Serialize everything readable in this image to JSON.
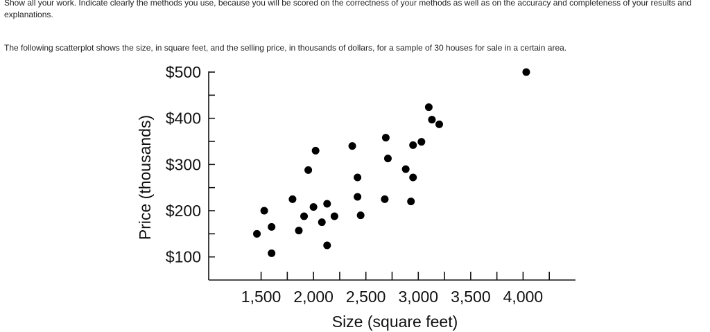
{
  "intro_text": "Show all your work. Indicate clearly the methods you use, because you will be scored on the correctness of your methods as well as on the accuracy and completeness of your results and explanations.",
  "question_text": "The following scatterplot shows the size, in square feet, and the selling price, in thousands of dollars, for a sample of 30 houses for sale in a certain area.",
  "chart_data": {
    "type": "scatter",
    "title": "",
    "xlabel": "Size (square feet)",
    "ylabel": "Price (thousands)",
    "xlim": [
      1000,
      4500
    ],
    "ylim": [
      50,
      500
    ],
    "x_major_ticks": [
      1500,
      2000,
      2500,
      3000,
      3500,
      4000
    ],
    "x_tick_labels": [
      "1,500",
      "2,000",
      "2,500",
      "3,000",
      "3,500",
      "4,000"
    ],
    "x_minor_ticks": [
      1750,
      2250,
      2750,
      3250,
      3750,
      4250
    ],
    "y_major_ticks": [
      100,
      200,
      300,
      400,
      500
    ],
    "y_tick_labels": [
      "$100",
      "$200",
      "$300",
      "$400",
      "$500"
    ],
    "y_minor_ticks": [
      150,
      250,
      350,
      450
    ],
    "grid": false,
    "point_color": "#000000",
    "points": [
      {
        "x": 1460,
        "y": 150
      },
      {
        "x": 1530,
        "y": 200
      },
      {
        "x": 1600,
        "y": 165
      },
      {
        "x": 1600,
        "y": 108
      },
      {
        "x": 1800,
        "y": 225
      },
      {
        "x": 1860,
        "y": 157
      },
      {
        "x": 1910,
        "y": 188
      },
      {
        "x": 1950,
        "y": 288
      },
      {
        "x": 2000,
        "y": 208
      },
      {
        "x": 2020,
        "y": 330
      },
      {
        "x": 2080,
        "y": 175
      },
      {
        "x": 2130,
        "y": 215
      },
      {
        "x": 2130,
        "y": 125
      },
      {
        "x": 2200,
        "y": 188
      },
      {
        "x": 2370,
        "y": 340
      },
      {
        "x": 2420,
        "y": 272
      },
      {
        "x": 2420,
        "y": 230
      },
      {
        "x": 2450,
        "y": 190
      },
      {
        "x": 2680,
        "y": 225
      },
      {
        "x": 2690,
        "y": 358
      },
      {
        "x": 2710,
        "y": 313
      },
      {
        "x": 2880,
        "y": 290
      },
      {
        "x": 2950,
        "y": 342
      },
      {
        "x": 2950,
        "y": 272
      },
      {
        "x": 2930,
        "y": 220
      },
      {
        "x": 3030,
        "y": 349
      },
      {
        "x": 3100,
        "y": 424
      },
      {
        "x": 3130,
        "y": 397
      },
      {
        "x": 3200,
        "y": 387
      },
      {
        "x": 4030,
        "y": 500
      }
    ]
  }
}
